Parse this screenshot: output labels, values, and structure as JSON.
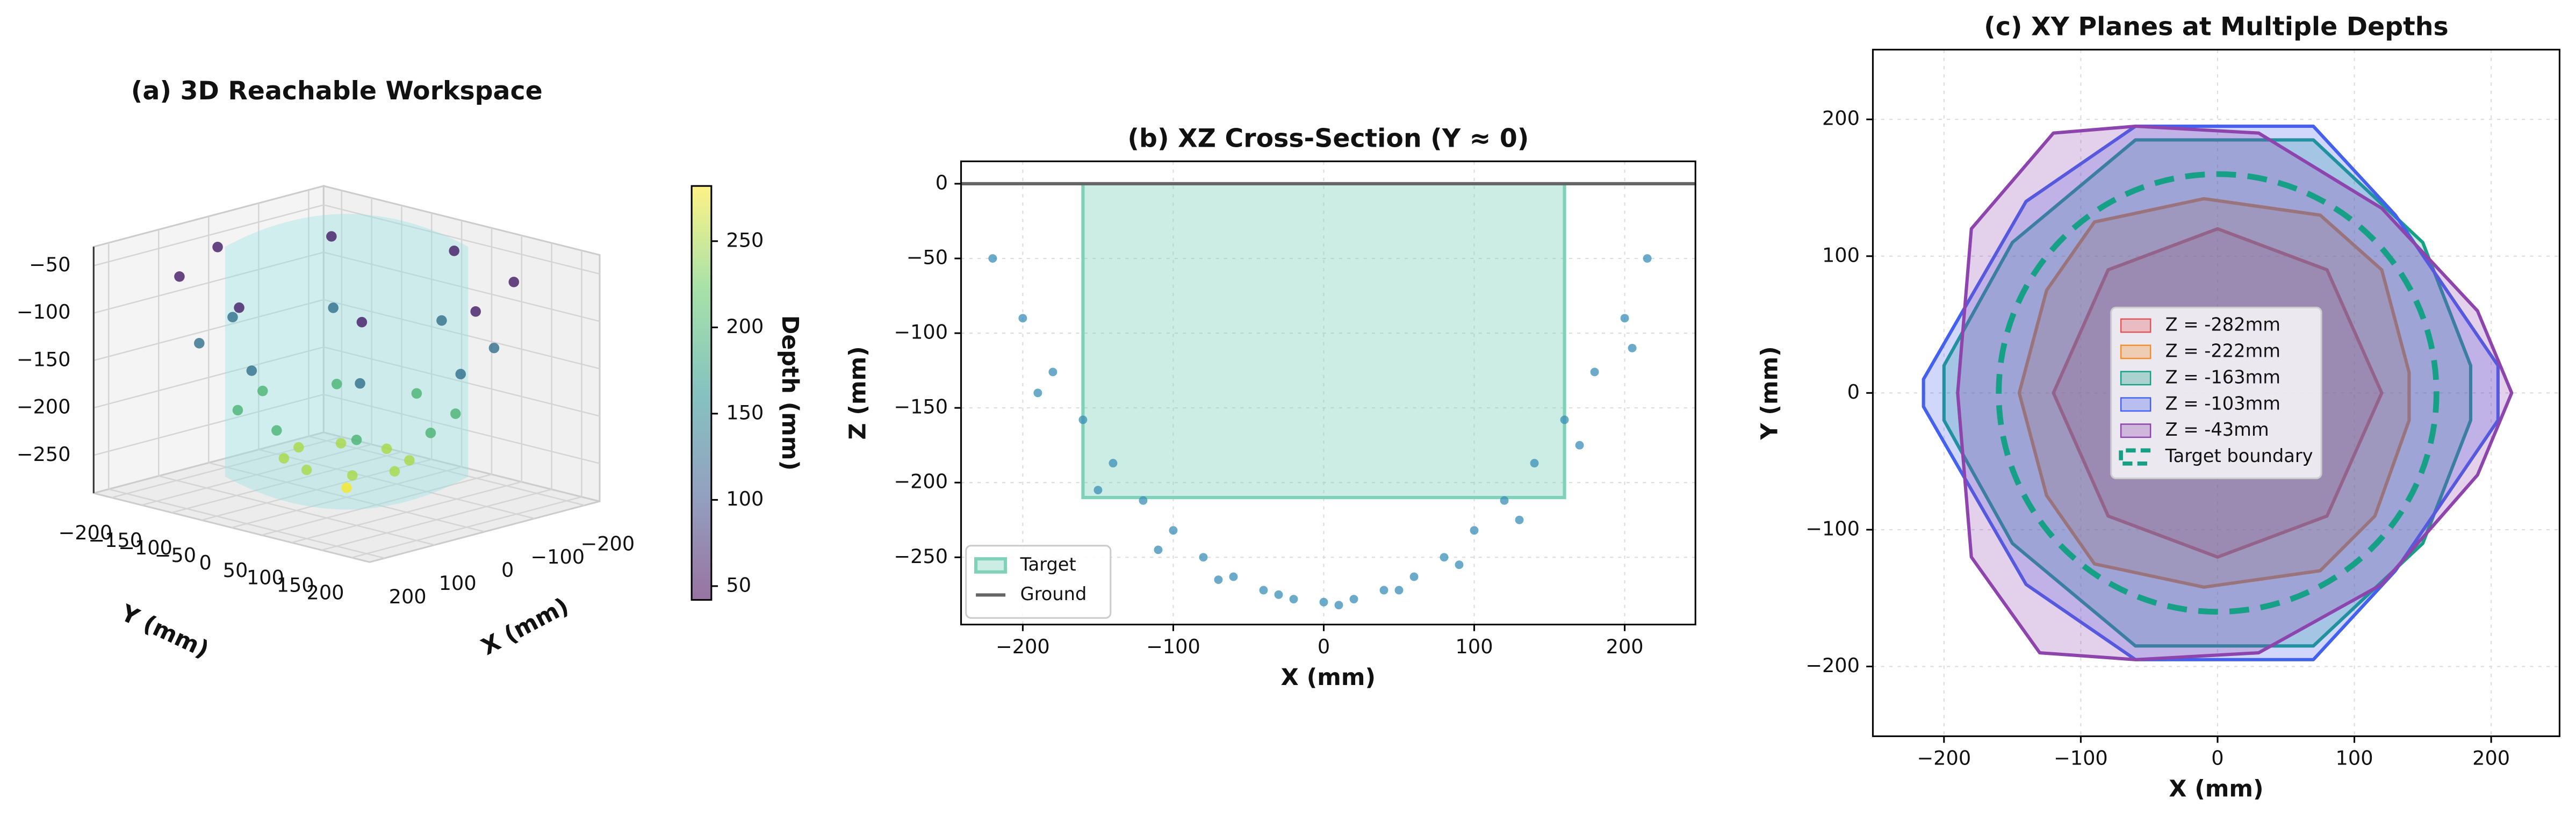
{
  "chart_data": [
    {
      "type": "scatter3d",
      "title": "(a) 3D Reachable Workspace",
      "xlabel": "X (mm)",
      "ylabel": "Y (mm)",
      "zlabel": "Z (mm)",
      "x": [
        0,
        80,
        57,
        0,
        -57,
        -80,
        -57,
        0,
        57,
        140,
        99,
        0,
        -99,
        -140,
        -99,
        0,
        99,
        190,
        134,
        0,
        -134,
        -190,
        -134,
        0,
        134,
        215,
        152,
        0,
        -152,
        -215,
        -152,
        0,
        152
      ],
      "y": [
        0,
        0,
        57,
        80,
        57,
        0,
        -57,
        -80,
        -57,
        0,
        99,
        140,
        99,
        0,
        -99,
        -140,
        -99,
        0,
        134,
        190,
        134,
        0,
        -134,
        -190,
        -134,
        0,
        152,
        215,
        152,
        0,
        -152,
        -215,
        -152
      ],
      "z": [
        -280,
        -250,
        -250,
        -250,
        -250,
        -250,
        -250,
        -250,
        -250,
        -200,
        -200,
        -200,
        -200,
        -200,
        -200,
        -200,
        -200,
        -130,
        -130,
        -130,
        -130,
        -130,
        -130,
        -130,
        -130,
        -60,
        -60,
        -60,
        -60,
        -60,
        -60,
        -60,
        -60
      ],
      "c": [
        280,
        250,
        250,
        250,
        250,
        250,
        250,
        250,
        250,
        200,
        200,
        200,
        200,
        200,
        200,
        200,
        200,
        130,
        130,
        130,
        130,
        130,
        130,
        130,
        130,
        60,
        60,
        60,
        60,
        60,
        60,
        60,
        60
      ],
      "xlim": [
        -230,
        230
      ],
      "ylim": [
        -230,
        230
      ],
      "zlim": [
        -290,
        -30
      ],
      "xticks": [
        {
          "value": -200,
          "label": "−200"
        },
        {
          "value": -100,
          "label": "−100"
        },
        0,
        100,
        200
      ],
      "yticks": [
        {
          "value": -200,
          "label": "−200"
        },
        {
          "value": -150,
          "label": "−150"
        },
        {
          "value": -100,
          "label": "−100"
        },
        {
          "value": -50,
          "label": "−50"
        },
        0,
        50,
        100,
        150,
        200
      ],
      "zticks": [
        {
          "value": -250,
          "label": "−250"
        },
        {
          "value": -200,
          "label": "−200"
        },
        {
          "value": -150,
          "label": "−150"
        },
        {
          "value": -100,
          "label": "−100"
        },
        {
          "value": -50,
          "label": "−50"
        }
      ],
      "colorbar": {
        "label": "Depth (mm)",
        "lim": [
          42,
          282
        ],
        "ticks": [
          50,
          100,
          150,
          200,
          250
        ],
        "colormap": "viridis"
      }
    },
    {
      "type": "scatter",
      "title": "(b) XZ Cross-Section (Y ≈ 0)",
      "xlabel": "X (mm)",
      "ylabel": "Z (mm)",
      "color": "#3a8db5",
      "x": [
        -220,
        -200,
        -180,
        -160,
        -140,
        -120,
        -100,
        -80,
        -60,
        -40,
        -20,
        0,
        20,
        40,
        60,
        80,
        100,
        120,
        140,
        160,
        180,
        200,
        215,
        -190,
        -150,
        -110,
        -70,
        -30,
        10,
        50,
        90,
        130,
        170,
        205
      ],
      "values": [
        -50,
        -90,
        -126,
        -158,
        -187,
        -212,
        -232,
        -250,
        -263,
        -272,
        -278,
        -280,
        -278,
        -272,
        -263,
        -250,
        -232,
        -212,
        -187,
        -158,
        -126,
        -90,
        -50,
        -140,
        -205,
        -245,
        -265,
        -275,
        -282,
        -272,
        -255,
        -225,
        -175,
        -110
      ],
      "target": {
        "name": "Target",
        "x": [
          -160,
          160
        ],
        "z": [
          -210,
          0
        ],
        "color": "#7fd1b9"
      },
      "ground": {
        "name": "Ground",
        "z": 0,
        "color": "#666666"
      },
      "xlim": [
        -241,
        247
      ],
      "ylim": [
        -295,
        15
      ],
      "xticks": [
        {
          "value": -200,
          "label": "−200"
        },
        {
          "value": -100,
          "label": "−100"
        },
        0,
        100,
        200
      ],
      "yticks": [
        0,
        {
          "value": -50,
          "label": "−50"
        },
        {
          "value": -100,
          "label": "−100"
        },
        {
          "value": -150,
          "label": "−150"
        },
        {
          "value": -200,
          "label": "−200"
        },
        {
          "value": -250,
          "label": "−250"
        }
      ],
      "grid": true,
      "legend": "lower left"
    },
    {
      "type": "polygon",
      "title": "(c) XY Planes at Multiple Depths",
      "xlabel": "X (mm)",
      "ylabel": "Y (mm)",
      "series": [
        {
          "name": "Z = -282mm",
          "color": "#e15759",
          "x": [
            0,
            80,
            120,
            80,
            0,
            -80,
            -120,
            -80
          ],
          "y": [
            120,
            90,
            0,
            -90,
            -120,
            -90,
            0,
            90
          ]
        },
        {
          "name": "Z = -222mm",
          "color": "#f28e2b",
          "x": [
            -10,
            75,
            120,
            140,
            140,
            115,
            75,
            -10,
            -90,
            -125,
            -145,
            -125,
            -90
          ],
          "y": [
            142,
            130,
            90,
            15,
            -20,
            -90,
            -130,
            -142,
            -125,
            -75,
            0,
            75,
            125
          ]
        },
        {
          "name": "Z = -163mm",
          "color": "#16a085",
          "x": [
            -60,
            70,
            150,
            185,
            185,
            150,
            70,
            -60,
            -150,
            -200,
            -200,
            -150
          ],
          "y": [
            185,
            185,
            110,
            20,
            -20,
            -110,
            -185,
            -185,
            -110,
            -20,
            20,
            110
          ]
        },
        {
          "name": "Z = -103mm",
          "color": "#4361ee",
          "x": [
            -60,
            70,
            130,
            205,
            205,
            130,
            70,
            -60,
            -140,
            -215,
            -215,
            -140
          ],
          "y": [
            195,
            195,
            130,
            20,
            -20,
            -130,
            -195,
            -195,
            -140,
            -10,
            10,
            140
          ]
        },
        {
          "name": "Z = -43mm",
          "color": "#8e44ad",
          "x": [
            -120,
            -60,
            30,
            120,
            190,
            215,
            190,
            120,
            30,
            -60,
            -130,
            -180,
            -190,
            -180
          ],
          "y": [
            190,
            195,
            190,
            135,
            60,
            0,
            -60,
            -140,
            -190,
            -195,
            -190,
            -120,
            0,
            120
          ]
        }
      ],
      "target": {
        "name": "Target boundary",
        "radius": 160,
        "color": "#16a085"
      },
      "xlim": [
        -252,
        250
      ],
      "ylim": [
        -251,
        251
      ],
      "xticks": [
        {
          "value": -200,
          "label": "−200"
        },
        {
          "value": -100,
          "label": "−100"
        },
        0,
        100,
        200
      ],
      "yticks": [
        {
          "value": -200,
          "label": "−200"
        },
        {
          "value": -100,
          "label": "−100"
        },
        0,
        100,
        200
      ],
      "grid": true,
      "legend": "center"
    }
  ]
}
